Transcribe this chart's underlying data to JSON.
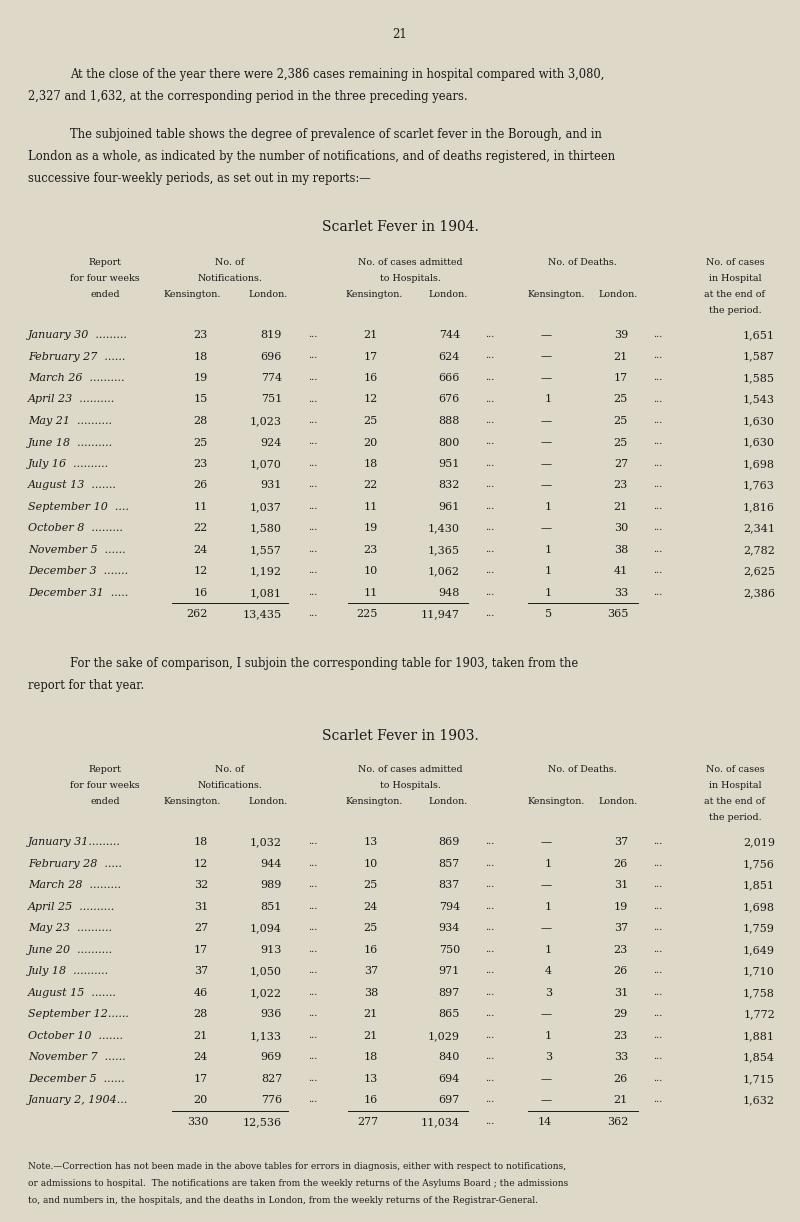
{
  "page_number": "21",
  "bg_color": "#ddd8c8",
  "text_color": "#1a1a1a",
  "intro_text_1a": "At the close of the year there were 2,386 cases remaining in hospital compared with 3,080,",
  "intro_text_1b": "2,327 and 1,632, at the corresponding period in the three preceding years.",
  "intro_text_2a": "The subjoined table shows the degree of prevalence of scarlet fever in the Borough, and in",
  "intro_text_2b": "London as a whole, as indicated by the number of notifications, and of deaths registered, in thirteen",
  "intro_text_2c": "successive four-weekly periods, as set out in my reports:—",
  "table1_title": "Scarlet Fever in 1904.",
  "table2_title": "Scarlet Fever in 1903.",
  "table1_rows": [
    [
      "January 30  .........",
      "23",
      "819",
      "21",
      "744",
      "—",
      "39",
      "1,651"
    ],
    [
      "February 27  ......",
      "18",
      "696",
      "17",
      "624",
      "—",
      "21",
      "1,587"
    ],
    [
      "March 26  ..........",
      "19",
      "774",
      "16",
      "666",
      "—",
      "17",
      "1,585"
    ],
    [
      "April 23  ..........",
      "15",
      "751",
      "12",
      "676",
      "1",
      "25",
      "1,543"
    ],
    [
      "May 21  ..........",
      "28",
      "1,023",
      "25",
      "888",
      "—",
      "25",
      "1,630"
    ],
    [
      "June 18  ..........",
      "25",
      "924",
      "20",
      "800",
      "—",
      "25",
      "1,630"
    ],
    [
      "July 16  ..........",
      "23",
      "1,070",
      "18",
      "951",
      "—",
      "27",
      "1,698"
    ],
    [
      "August 13  .......",
      "26",
      "931",
      "22",
      "832",
      "—",
      "23",
      "1,763"
    ],
    [
      "September 10  ....",
      "11",
      "1,037",
      "11",
      "961",
      "1",
      "21",
      "1,816"
    ],
    [
      "October 8  .........",
      "22",
      "1,580",
      "19",
      "1,430",
      "—",
      "30",
      "2,341"
    ],
    [
      "November 5  ......",
      "24",
      "1,557",
      "23",
      "1,365",
      "1",
      "38",
      "2,782"
    ],
    [
      "December 3  .......",
      "12",
      "1,192",
      "10",
      "1,062",
      "1",
      "41",
      "2,625"
    ],
    [
      "December 31  .....",
      "16",
      "1,081",
      "11",
      "948",
      "1",
      "33",
      "2,386"
    ]
  ],
  "table1_totals": [
    "262",
    "13,435",
    "225",
    "11,947",
    "5",
    "365"
  ],
  "table2_rows": [
    [
      "January 31.........",
      "18",
      "1,032",
      "13",
      "869",
      "—",
      "37",
      "2,019"
    ],
    [
      "February 28  .....",
      "12",
      "944",
      "10",
      "857",
      "1",
      "26",
      "1,756"
    ],
    [
      "March 28  .........",
      "32",
      "989",
      "25",
      "837",
      "—",
      "31",
      "1,851"
    ],
    [
      "April 25  ..........",
      "31",
      "851",
      "24",
      "794",
      "1",
      "19",
      "1,698"
    ],
    [
      "May 23  ..........",
      "27",
      "1,094",
      "25",
      "934",
      "—",
      "37",
      "1,759"
    ],
    [
      "June 20  ..........",
      "17",
      "913",
      "16",
      "750",
      "1",
      "23",
      "1,649"
    ],
    [
      "July 18  ..........",
      "37",
      "1,050",
      "37",
      "971",
      "4",
      "26",
      "1,710"
    ],
    [
      "August 15  .......",
      "46",
      "1,022",
      "38",
      "897",
      "3",
      "31",
      "1,758"
    ],
    [
      "September 12......",
      "28",
      "936",
      "21",
      "865",
      "—",
      "29",
      "1,772"
    ],
    [
      "October 10  .......",
      "21",
      "1,133",
      "21",
      "1,029",
      "1",
      "23",
      "1,881"
    ],
    [
      "November 7  ......",
      "24",
      "969",
      "18",
      "840",
      "3",
      "33",
      "1,854"
    ],
    [
      "December 5  ......",
      "17",
      "827",
      "13",
      "694",
      "—",
      "26",
      "1,715"
    ],
    [
      "January 2, 1904...",
      "20",
      "776",
      "16",
      "697",
      "—",
      "21",
      "1,632"
    ]
  ],
  "table2_totals": [
    "330",
    "12,536",
    "277",
    "11,034",
    "14",
    "362"
  ],
  "between_text_a": "For the sake of comparison, I subjoin the corresponding table for 1903, taken from the",
  "between_text_b": "report for that year.",
  "note_line1": "Note.—Correction has not been made in the above tables for errors in diagnosis, either with respect to notifications,",
  "note_line2": "or admissions to hospital.  The notifications are taken from the weekly returns of the Asylums Board ; the admissions",
  "note_line3": "to, and numbers in, the hospitals, and the deaths in London, from the weekly returns of the Registrar-General."
}
